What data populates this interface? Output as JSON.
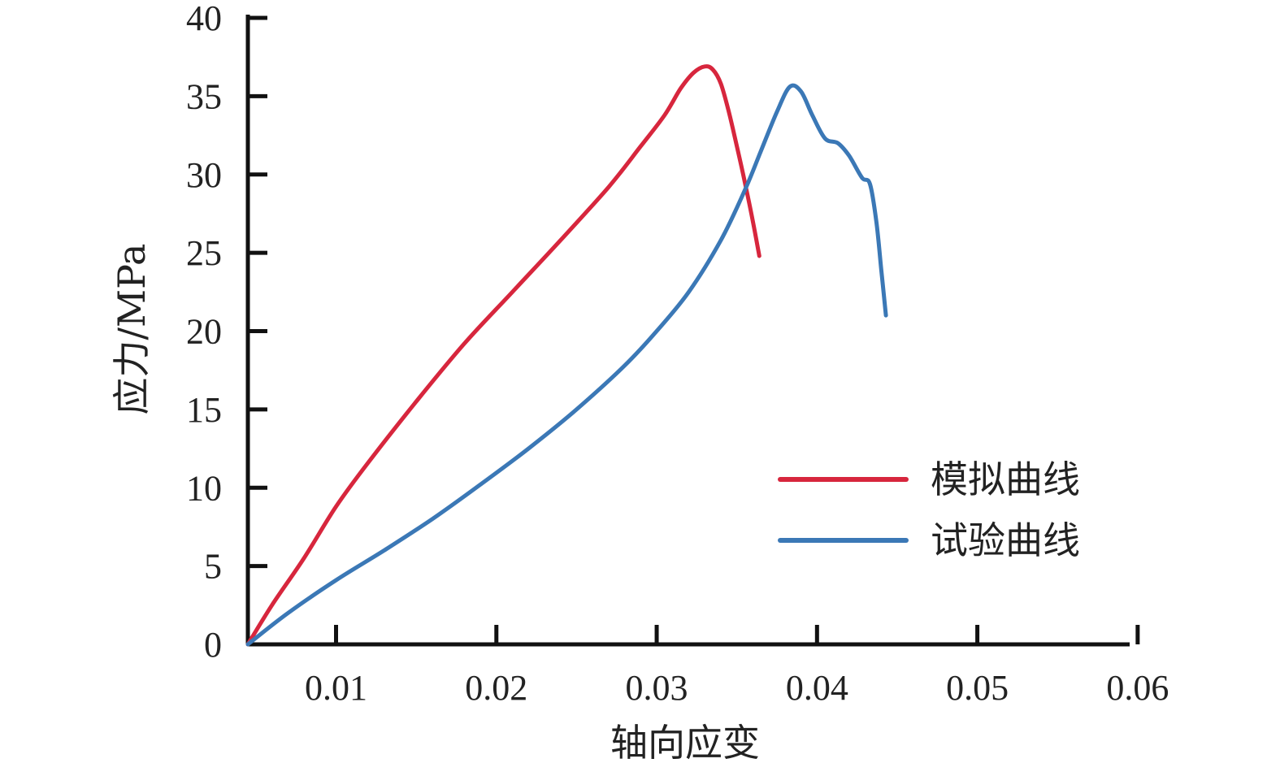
{
  "chart_data": {
    "type": "line",
    "title": "",
    "xlabel": "轴向应变",
    "ylabel": "应力/MPa",
    "xlim": [
      0.0045,
      0.0595
    ],
    "ylim": [
      0,
      40
    ],
    "x_ticks": [
      0.01,
      0.02,
      0.03,
      0.04,
      0.05,
      0.06
    ],
    "x_tick_labels": [
      "0.01",
      "0.02",
      "0.03",
      "0.04",
      "0.05",
      "0.06"
    ],
    "y_ticks": [
      0,
      5,
      10,
      15,
      20,
      25,
      30,
      35,
      40
    ],
    "y_tick_labels": [
      "0",
      "5",
      "10",
      "15",
      "20",
      "25",
      "30",
      "35",
      "40"
    ],
    "grid": false,
    "legend_position": "bottom-right",
    "series": [
      {
        "name": "模拟曲线",
        "color": "#d7263d",
        "points": [
          [
            0.0045,
            0
          ],
          [
            0.006,
            2.5
          ],
          [
            0.008,
            5.5
          ],
          [
            0.01,
            8.8
          ],
          [
            0.012,
            11.6
          ],
          [
            0.015,
            15.5
          ],
          [
            0.018,
            19.2
          ],
          [
            0.021,
            22.5
          ],
          [
            0.024,
            25.8
          ],
          [
            0.027,
            29.2
          ],
          [
            0.029,
            31.8
          ],
          [
            0.0305,
            33.8
          ],
          [
            0.0315,
            35.5
          ],
          [
            0.0323,
            36.5
          ],
          [
            0.033,
            36.9
          ],
          [
            0.0335,
            36.7
          ],
          [
            0.034,
            35.8
          ],
          [
            0.0345,
            34.0
          ],
          [
            0.035,
            31.8
          ],
          [
            0.0355,
            29.5
          ],
          [
            0.036,
            27.0
          ],
          [
            0.0364,
            24.8
          ]
        ]
      },
      {
        "name": "试验曲线",
        "color": "#3b78b6",
        "points": [
          [
            0.0045,
            0
          ],
          [
            0.007,
            2.0
          ],
          [
            0.01,
            4.1
          ],
          [
            0.013,
            6.0
          ],
          [
            0.016,
            8.0
          ],
          [
            0.019,
            10.2
          ],
          [
            0.022,
            12.5
          ],
          [
            0.025,
            15.0
          ],
          [
            0.028,
            17.8
          ],
          [
            0.03,
            20.0
          ],
          [
            0.032,
            22.5
          ],
          [
            0.034,
            25.8
          ],
          [
            0.0355,
            29.0
          ],
          [
            0.0365,
            31.5
          ],
          [
            0.0375,
            34.0
          ],
          [
            0.0383,
            35.6
          ],
          [
            0.039,
            35.3
          ],
          [
            0.0397,
            33.8
          ],
          [
            0.0405,
            32.3
          ],
          [
            0.0413,
            32.0
          ],
          [
            0.042,
            31.2
          ],
          [
            0.0428,
            29.8
          ],
          [
            0.0433,
            29.4
          ],
          [
            0.0437,
            27.0
          ],
          [
            0.044,
            24.0
          ],
          [
            0.0443,
            21.0
          ]
        ]
      }
    ]
  }
}
